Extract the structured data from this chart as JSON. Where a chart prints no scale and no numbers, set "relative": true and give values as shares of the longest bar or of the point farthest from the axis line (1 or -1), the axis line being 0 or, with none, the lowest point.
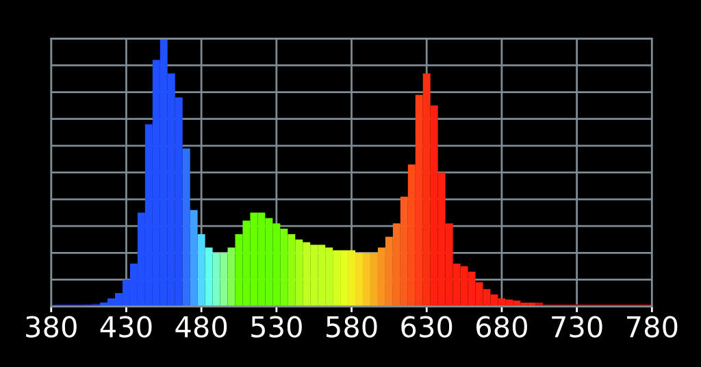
{
  "chart_data": {
    "type": "bar",
    "relative": true,
    "x": [
      380,
      385,
      390,
      395,
      400,
      405,
      410,
      415,
      420,
      425,
      430,
      435,
      440,
      445,
      450,
      455,
      460,
      465,
      470,
      475,
      480,
      485,
      490,
      495,
      500,
      505,
      510,
      515,
      520,
      525,
      530,
      535,
      540,
      545,
      550,
      555,
      560,
      565,
      570,
      575,
      580,
      585,
      590,
      595,
      600,
      605,
      610,
      615,
      620,
      625,
      630,
      635,
      640,
      645,
      650,
      655,
      660,
      665,
      670,
      675,
      680,
      685,
      690,
      695,
      700,
      705,
      710,
      715,
      720,
      725,
      730,
      735,
      740,
      745,
      750,
      755,
      760,
      765,
      770,
      775,
      780
    ],
    "values": [
      0.006,
      0.008,
      0.008,
      0.008,
      0.008,
      0.008,
      0.01,
      0.015,
      0.03,
      0.05,
      0.1,
      0.16,
      0.35,
      0.68,
      0.92,
      1,
      0.87,
      0.78,
      0.59,
      0.36,
      0.27,
      0.22,
      0.2,
      0.2,
      0.22,
      0.27,
      0.32,
      0.35,
      0.35,
      0.33,
      0.31,
      0.29,
      0.27,
      0.25,
      0.24,
      0.23,
      0.23,
      0.22,
      0.21,
      0.21,
      0.21,
      0.2,
      0.2,
      0.2,
      0.22,
      0.26,
      0.31,
      0.41,
      0.53,
      0.79,
      0.87,
      0.75,
      0.5,
      0.31,
      0.16,
      0.15,
      0.13,
      0.09,
      0.065,
      0.045,
      0.03,
      0.026,
      0.022,
      0.014,
      0.014,
      0.014,
      0.008,
      0.008,
      0.008,
      0.008,
      0.008,
      0.008,
      0.008,
      0.008,
      0.008,
      0.008,
      0.008,
      0.008,
      0.008,
      0.008,
      0.008
    ],
    "colors": [
      "#1c1c9c",
      "#1c1c9c",
      "#1c1c9c",
      "#1c1c9c",
      "#1c1c9c",
      "#1c24b4",
      "#1c24b4",
      "#2050ff",
      "#2050ff",
      "#2050ff",
      "#2050ff",
      "#2050ff",
      "#2050ff",
      "#2050ff",
      "#2050ff",
      "#2050ff",
      "#2050ff",
      "#2050ff",
      "#3070ff",
      "#40a0ff",
      "#50d8ff",
      "#60ffee",
      "#78ffc8",
      "#88ff90",
      "#80ff50",
      "#66ff00",
      "#66ff00",
      "#66ff00",
      "#66ff00",
      "#66ff00",
      "#66ff00",
      "#78ff00",
      "#90ff10",
      "#a8ff18",
      "#c0ff20",
      "#c0ff20",
      "#c0ff20",
      "#c0ff20",
      "#d4ff20",
      "#e4ff20",
      "#f0f020",
      "#f8dc20",
      "#f8c420",
      "#f8ac20",
      "#f89420",
      "#f88020",
      "#f86c20",
      "#fc5c1c",
      "#ff4c18",
      "#ff3c14",
      "#ff3010",
      "#ff2010",
      "#ff2010",
      "#ff2010",
      "#ff2010",
      "#ff2010",
      "#ff2010",
      "#ff2010",
      "#ff2010",
      "#ff2010",
      "#ff2010",
      "#ff2010",
      "#ff2010",
      "#ff2010",
      "#ff2010",
      "#d01010",
      "#8a0a0a",
      "#8a0a0a",
      "#8a0a0a",
      "#8a0a0a",
      "#8a0a0a",
      "#8a0a0a",
      "#8a0a0a",
      "#8a0a0a",
      "#8a0a0a",
      "#8a0a0a",
      "#8a0a0a",
      "#8a0a0a",
      "#8a0a0a",
      "#8a0a0a",
      "#8a0a0a"
    ],
    "xlim": [
      380,
      780
    ],
    "xticks": [
      380,
      430,
      480,
      530,
      580,
      630,
      680,
      730,
      780
    ],
    "grid": true,
    "tick_labels": "x"
  }
}
